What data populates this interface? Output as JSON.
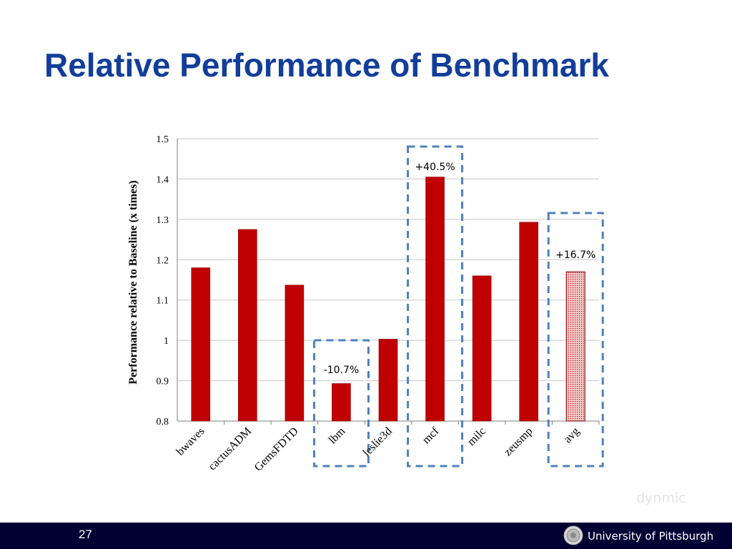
{
  "slide": {
    "title": "Relative Performance of Benchmark",
    "page_number": "27",
    "watermark": "dynmic"
  },
  "footer": {
    "university_name": "University of Pittsburgh",
    "seal_icon": "university-seal-icon",
    "background_color": "#000033"
  },
  "colors": {
    "title": "#123e9a",
    "bar": "#c00000",
    "highlight_box": "#4f81bd",
    "avg_bar": "#f2c4c4"
  },
  "chart_data": {
    "type": "bar",
    "title": "",
    "xlabel": "",
    "ylabel": "Performance relative to Baseline (x times)",
    "ylim": [
      0.8,
      1.5
    ],
    "yticks": [
      0.8,
      0.9,
      1.0,
      1.1,
      1.2,
      1.3,
      1.4,
      1.5
    ],
    "ytick_labels": [
      "0.8",
      "0.9",
      "1",
      "1.1",
      "1.2",
      "1.3",
      "1.4",
      "1.5"
    ],
    "grid": true,
    "categories": [
      "bwaves",
      "cactusADM",
      "GemsFDTD",
      "lbm",
      "leslie3d",
      "mcf",
      "milc",
      "zeusmp",
      "avg"
    ],
    "values": [
      1.18,
      1.275,
      1.137,
      0.893,
      1.003,
      1.405,
      1.16,
      1.293,
      1.17
    ],
    "bar_fills": [
      "solid",
      "solid",
      "solid",
      "solid",
      "solid",
      "solid",
      "solid",
      "solid",
      "dotted"
    ],
    "annotations": [
      {
        "category": "lbm",
        "text": "-10.7%"
      },
      {
        "category": "mcf",
        "text": "+40.5%"
      },
      {
        "category": "avg",
        "text": "+16.7%"
      }
    ]
  }
}
